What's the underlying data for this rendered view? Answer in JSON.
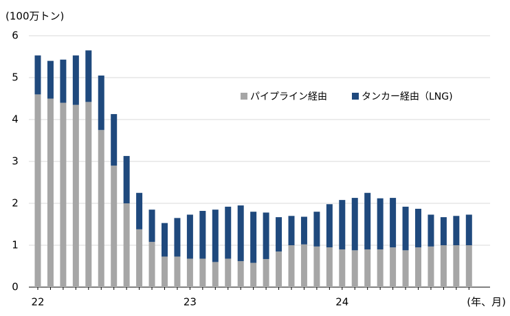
{
  "chart_data": {
    "type": "stacked_bar",
    "y_unit_label": "(100万トン)",
    "x_unit_label": "(年、月)",
    "categories": [
      "22",
      null,
      null,
      null,
      null,
      null,
      null,
      null,
      null,
      null,
      null,
      null,
      "23",
      null,
      null,
      null,
      null,
      null,
      null,
      null,
      null,
      null,
      null,
      null,
      "24",
      null,
      null,
      null,
      null,
      null,
      null,
      null,
      null,
      null,
      null
    ],
    "series": [
      {
        "name": "パイプライン経由",
        "color": "#a6a6a6",
        "values": [
          4.6,
          4.5,
          4.4,
          4.35,
          4.42,
          3.75,
          2.9,
          2.0,
          1.38,
          1.08,
          0.73,
          0.73,
          0.68,
          0.68,
          0.6,
          0.68,
          0.62,
          0.58,
          0.67,
          0.85,
          1.0,
          1.02,
          0.97,
          0.95,
          0.9,
          0.88,
          0.9,
          0.9,
          0.95,
          0.88,
          0.95,
          0.97,
          1.0,
          1.0,
          1.0
        ]
      },
      {
        "name": "タンカー経由（LNG)",
        "color": "#1f497d",
        "values": [
          0.93,
          0.9,
          1.03,
          1.18,
          1.23,
          1.3,
          1.23,
          1.13,
          0.87,
          0.77,
          0.8,
          0.92,
          1.05,
          1.14,
          1.25,
          1.24,
          1.33,
          1.22,
          1.11,
          0.82,
          0.7,
          0.66,
          0.83,
          1.03,
          1.18,
          1.25,
          1.35,
          1.22,
          1.18,
          1.04,
          0.92,
          0.76,
          0.67,
          0.7,
          0.73
        ]
      }
    ],
    "ylim": [
      0,
      6
    ],
    "yticks": [
      0,
      1,
      2,
      3,
      4,
      5,
      6
    ],
    "grid": true
  }
}
